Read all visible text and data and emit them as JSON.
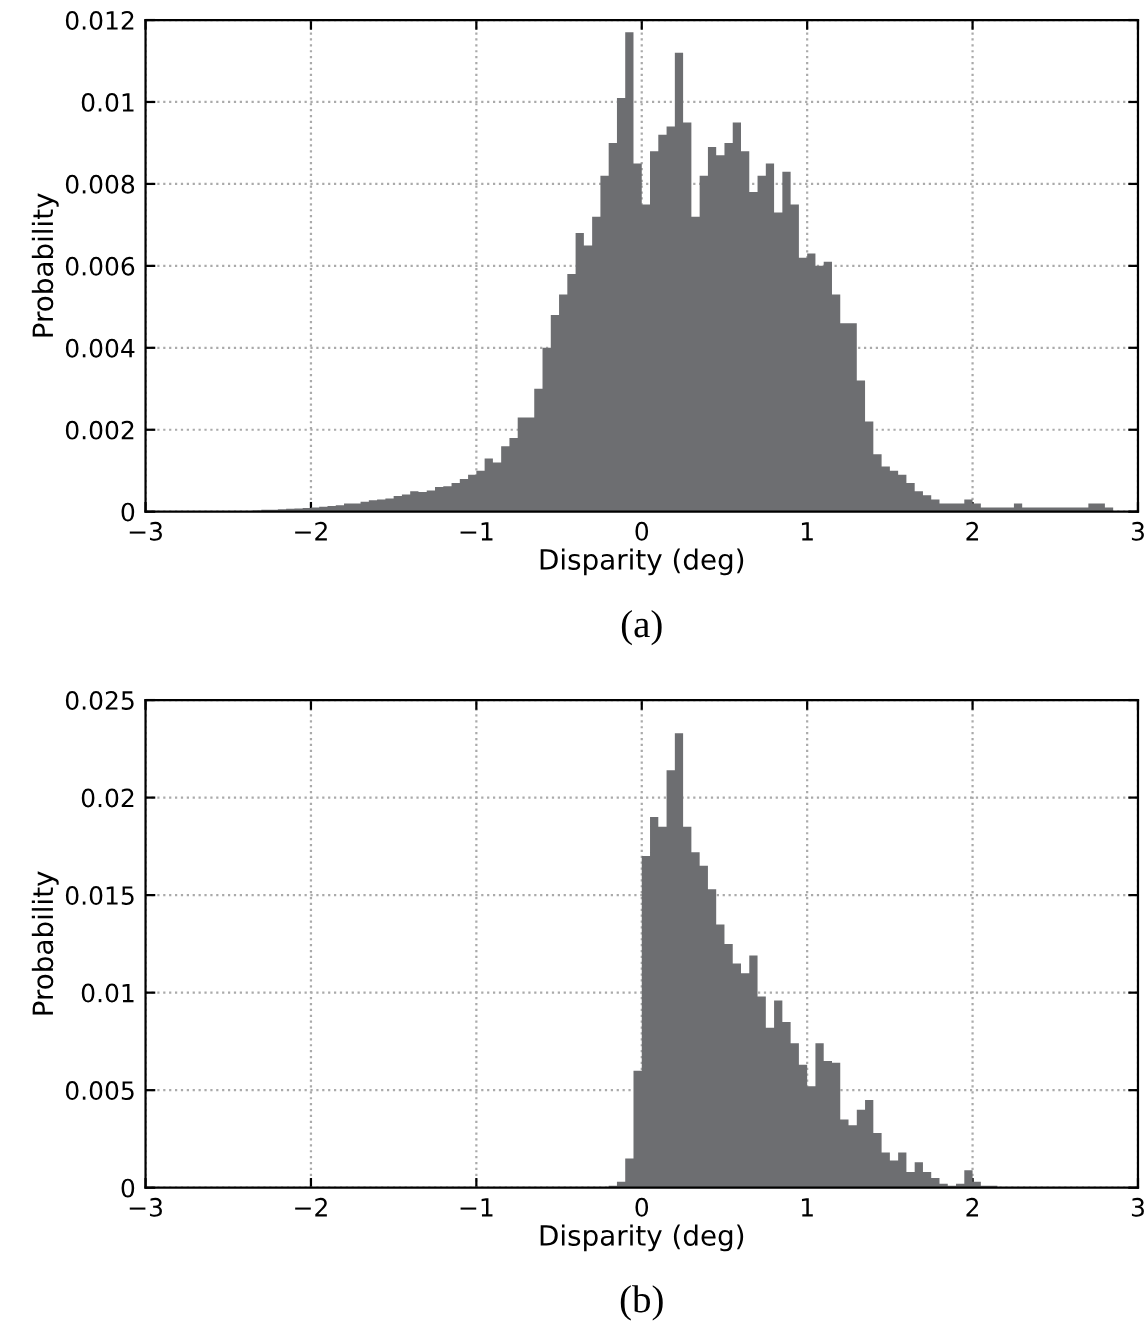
{
  "chart_data": [
    {
      "type": "histogram",
      "xlabel": "Disparity (deg)",
      "ylabel": "Probability",
      "annotations": [
        "(a)"
      ],
      "color": "#6d6e71",
      "grid": true,
      "bins": [
        -3,
        -2.35,
        -2.3,
        -2.25,
        -2.2,
        -2.15,
        -2.1,
        -2.05,
        -2,
        -1.95,
        -1.9,
        -1.85,
        -1.8,
        -1.75,
        -1.7,
        -1.65,
        -1.6,
        -1.55,
        -1.5,
        -1.45,
        -1.4,
        -1.35,
        -1.3,
        -1.25,
        -1.2,
        -1.15,
        -1.1,
        -1.05,
        -1,
        -0.95,
        -0.9,
        -0.85,
        -0.8,
        -0.75,
        -0.7,
        -0.65,
        -0.6,
        -0.55,
        -0.5,
        -0.45,
        -0.4,
        -0.35,
        -0.3,
        -0.25,
        -0.2,
        -0.15,
        -0.1,
        -0.05,
        0,
        0.05,
        0.1,
        0.15,
        0.2,
        0.25,
        0.3,
        0.35,
        0.4,
        0.45,
        0.5,
        0.55,
        0.6,
        0.65,
        0.7,
        0.75,
        0.8,
        0.85,
        0.9,
        0.95,
        1,
        1.05,
        1.1,
        1.15,
        1.2,
        1.25,
        1.3,
        1.35,
        1.4,
        1.45,
        1.5,
        1.55,
        1.6,
        1.65,
        1.7,
        1.75,
        1.8,
        1.85,
        1.9,
        1.95,
        2,
        2.05,
        2.1,
        2.15,
        2.2,
        2.25,
        2.3,
        2.35,
        2.4,
        2.45,
        2.5,
        2.55,
        2.6,
        2.65,
        2.7,
        2.75,
        2.8,
        2.85,
        2.9,
        2.95,
        3
      ],
      "values": [
        0,
        3e-05,
        5e-05,
        5e-05,
        6e-05,
        7e-05,
        8e-05,
        9e-05,
        0.0001,
        0.00012,
        0.00014,
        0.00016,
        0.0002,
        0.0002,
        0.00024,
        0.00028,
        0.0003,
        0.00032,
        0.00038,
        0.00042,
        0.0005,
        0.00048,
        0.00052,
        0.0006,
        0.00062,
        0.0007,
        0.0008,
        0.0009,
        0.001,
        0.0013,
        0.0012,
        0.0016,
        0.0018,
        0.0023,
        0.0023,
        0.003,
        0.004,
        0.0048,
        0.0053,
        0.0058,
        0.0068,
        0.0065,
        0.0072,
        0.0082,
        0.009,
        0.0101,
        0.0117,
        0.0085,
        0.0075,
        0.0088,
        0.0092,
        0.0094,
        0.0112,
        0.0095,
        0.0072,
        0.0082,
        0.0089,
        0.0087,
        0.009,
        0.0095,
        0.0088,
        0.0078,
        0.0082,
        0.0085,
        0.0073,
        0.0083,
        0.0075,
        0.0062,
        0.0063,
        0.006,
        0.0061,
        0.0053,
        0.0046,
        0.0046,
        0.0032,
        0.0022,
        0.0014,
        0.0011,
        0.001,
        0.0009,
        0.0007,
        0.0005,
        0.0004,
        0.0003,
        0.0002,
        0.0002,
        0.0002,
        0.0003,
        0.0002,
        0.0001,
        0.0001,
        0.0001,
        0.0001,
        0.0002,
        0.0001,
        0.0001,
        0.0001,
        0.0001,
        0.0001,
        0.0001,
        0.0001,
        0.0001,
        0.0002,
        0.0002,
        0.0001,
        0,
        0,
        0
      ],
      "xlim": [
        -3,
        3
      ],
      "xticks": [
        {
          "value": -3,
          "label": "−3"
        },
        {
          "value": -2,
          "label": "−2"
        },
        {
          "value": -1,
          "label": "−1"
        },
        0,
        1,
        2,
        3
      ],
      "ylim": [
        0,
        0.012
      ],
      "yticks": [
        0,
        0.002,
        0.004,
        0.006,
        0.008,
        0.01,
        0.012
      ]
    },
    {
      "type": "histogram",
      "xlabel": "Disparity (deg)",
      "ylabel": "Probability",
      "annotations": [
        "(b)"
      ],
      "color": "#6d6e71",
      "grid": true,
      "bins": [
        -3,
        -0.2,
        -0.15,
        -0.1,
        -0.05,
        0,
        0.05,
        0.1,
        0.15,
        0.2,
        0.25,
        0.3,
        0.35,
        0.4,
        0.45,
        0.5,
        0.55,
        0.6,
        0.65,
        0.7,
        0.75,
        0.8,
        0.85,
        0.9,
        0.95,
        1,
        1.05,
        1.1,
        1.15,
        1.2,
        1.25,
        1.3,
        1.35,
        1.4,
        1.45,
        1.5,
        1.55,
        1.6,
        1.65,
        1.7,
        1.75,
        1.8,
        1.85,
        1.9,
        1.95,
        2,
        2.05,
        2.1,
        2.15,
        2.2,
        3
      ],
      "values": [
        0,
        0.0001,
        0.0003,
        0.0015,
        0.006,
        0.017,
        0.019,
        0.0185,
        0.0214,
        0.0233,
        0.0185,
        0.0172,
        0.0165,
        0.0153,
        0.0135,
        0.0125,
        0.0115,
        0.011,
        0.0119,
        0.0098,
        0.0082,
        0.0096,
        0.0085,
        0.0074,
        0.0063,
        0.0052,
        0.0074,
        0.0065,
        0.0064,
        0.0035,
        0.0032,
        0.004,
        0.0045,
        0.0028,
        0.0018,
        0.0014,
        0.0018,
        0.0008,
        0.0013,
        0.0008,
        0.0005,
        0.0002,
        0.0001,
        0.0002,
        0.0009,
        0.0003,
        0.0001,
        0.0001,
        0,
        0
      ],
      "xlim": [
        -3,
        3
      ],
      "xticks": [
        {
          "value": -3,
          "label": "−3"
        },
        {
          "value": -2,
          "label": "−2"
        },
        {
          "value": -1,
          "label": "−1"
        },
        0,
        1,
        2,
        3
      ],
      "ylim": [
        0,
        0.025
      ],
      "yticks": [
        0,
        0.005,
        0.01,
        0.015,
        0.02,
        0.025
      ]
    }
  ]
}
